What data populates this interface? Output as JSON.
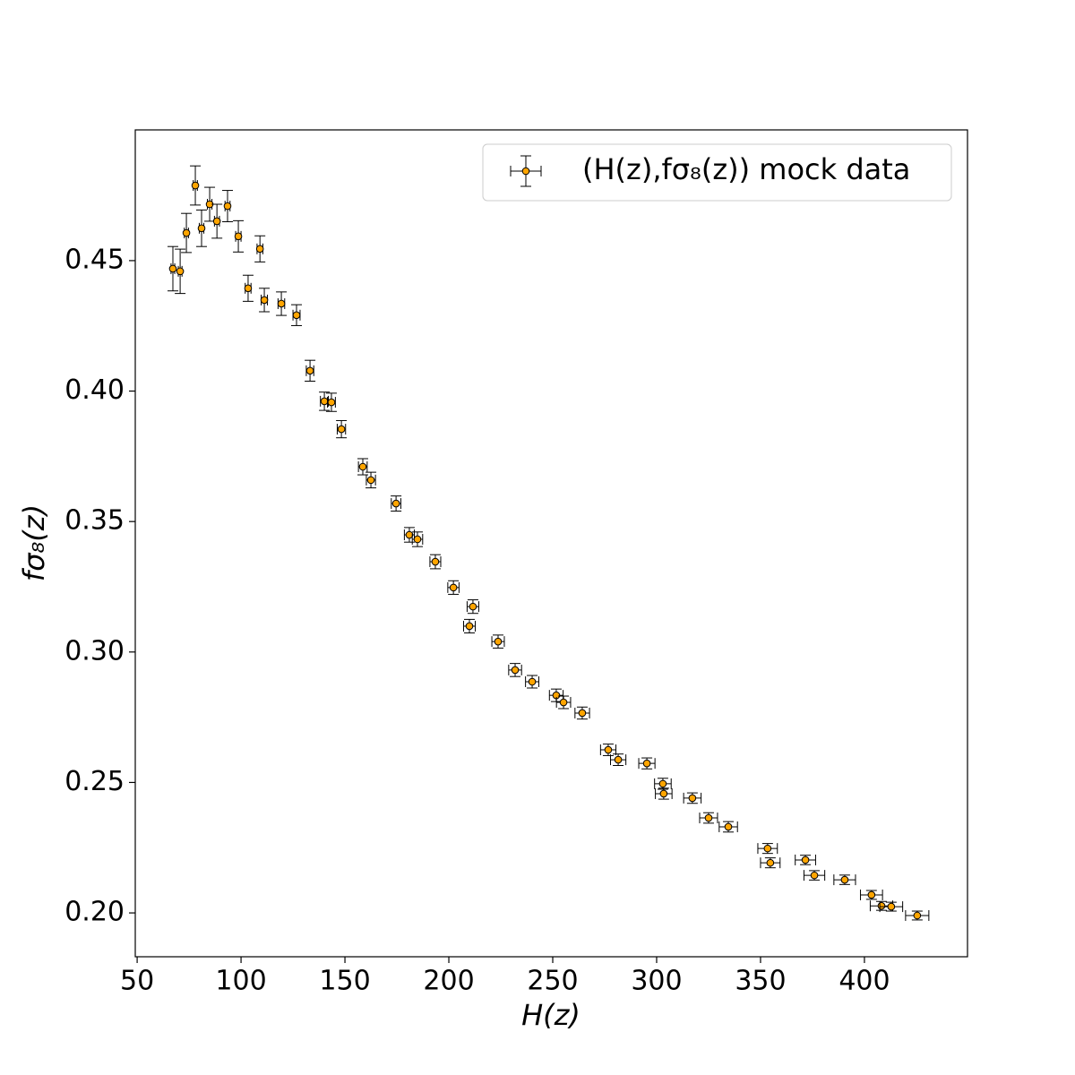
{
  "chart_data": {
    "type": "scatter",
    "xlabel": "H(z)",
    "ylabel": "fσ₈(z)",
    "legend": "upper right",
    "xlim": [
      49.1,
      449.6
    ],
    "ylim": [
      0.1832,
      0.5001
    ],
    "xticks": [
      50,
      100,
      150,
      200,
      250,
      300,
      350,
      400
    ],
    "yticks": [
      {
        "value": 0.2,
        "label": "0.20"
      },
      0.25,
      {
        "value": 0.3,
        "label": "0.30"
      },
      0.35,
      {
        "value": 0.4,
        "label": "0.40"
      },
      0.45
    ],
    "series": [
      {
        "name": "(H(z),fσ₈(z)) mock data",
        "color": "#ffa500",
        "x": [
          67.2,
          70.7,
          73.7,
          78.0,
          81.0,
          84.9,
          88.4,
          93.5,
          98.7,
          103.4,
          109.1,
          111.2,
          119.4,
          126.7,
          133.2,
          140.1,
          143.5,
          148.3,
          158.6,
          162.5,
          174.6,
          181.0,
          184.9,
          193.5,
          202.2,
          211.6,
          209.9,
          223.7,
          231.9,
          240.1,
          251.7,
          255.2,
          264.2,
          276.7,
          281.5,
          295.3,
          303.0,
          303.4,
          317.2,
          325.0,
          334.5,
          353.4,
          354.7,
          371.6,
          375.9,
          390.5,
          403.4,
          408.2,
          412.9,
          425.4
        ],
        "y": [
          0.4469,
          0.4459,
          0.4606,
          0.4788,
          0.4624,
          0.4716,
          0.4651,
          0.4709,
          0.4593,
          0.4394,
          0.4545,
          0.4349,
          0.4335,
          0.4291,
          0.4078,
          0.3961,
          0.3957,
          0.3854,
          0.371,
          0.3659,
          0.3569,
          0.3449,
          0.3432,
          0.3346,
          0.3247,
          0.3174,
          0.3099,
          0.304,
          0.2931,
          0.2886,
          0.2834,
          0.2807,
          0.2766,
          0.2625,
          0.2587,
          0.2573,
          0.2495,
          0.2457,
          0.244,
          0.2364,
          0.233,
          0.2247,
          0.2192,
          0.2203,
          0.2144,
          0.2127,
          0.2069,
          0.2027,
          0.2024,
          0.199
        ],
        "xerr": [
          0.9,
          0.9,
          1.0,
          1.0,
          1.1,
          1.1,
          1.2,
          1.2,
          1.3,
          1.4,
          1.4,
          1.5,
          1.6,
          1.7,
          1.8,
          1.9,
          1.9,
          2.0,
          2.1,
          2.2,
          2.3,
          2.4,
          2.5,
          2.6,
          2.7,
          2.8,
          2.8,
          3.0,
          3.1,
          3.2,
          3.3,
          3.4,
          3.5,
          3.7,
          3.7,
          3.9,
          4.0,
          4.0,
          4.2,
          4.3,
          4.4,
          4.7,
          4.7,
          4.9,
          5.0,
          5.2,
          5.3,
          5.4,
          5.5,
          5.6
        ],
        "yerr": [
          0.0085,
          0.0085,
          0.0075,
          0.0075,
          0.007,
          0.0065,
          0.0065,
          0.006,
          0.006,
          0.005,
          0.005,
          0.0045,
          0.0045,
          0.004,
          0.004,
          0.0035,
          0.0035,
          0.0033,
          0.0031,
          0.003,
          0.0029,
          0.0028,
          0.0028,
          0.0027,
          0.0026,
          0.0026,
          0.0026,
          0.0025,
          0.0025,
          0.0024,
          0.0024,
          0.0024,
          0.0023,
          0.0022,
          0.0022,
          0.0021,
          0.0021,
          0.0021,
          0.002,
          0.002,
          0.002,
          0.0019,
          0.0019,
          0.0018,
          0.0018,
          0.0018,
          0.0017,
          0.0017,
          0.0017,
          0.0017
        ]
      }
    ]
  }
}
